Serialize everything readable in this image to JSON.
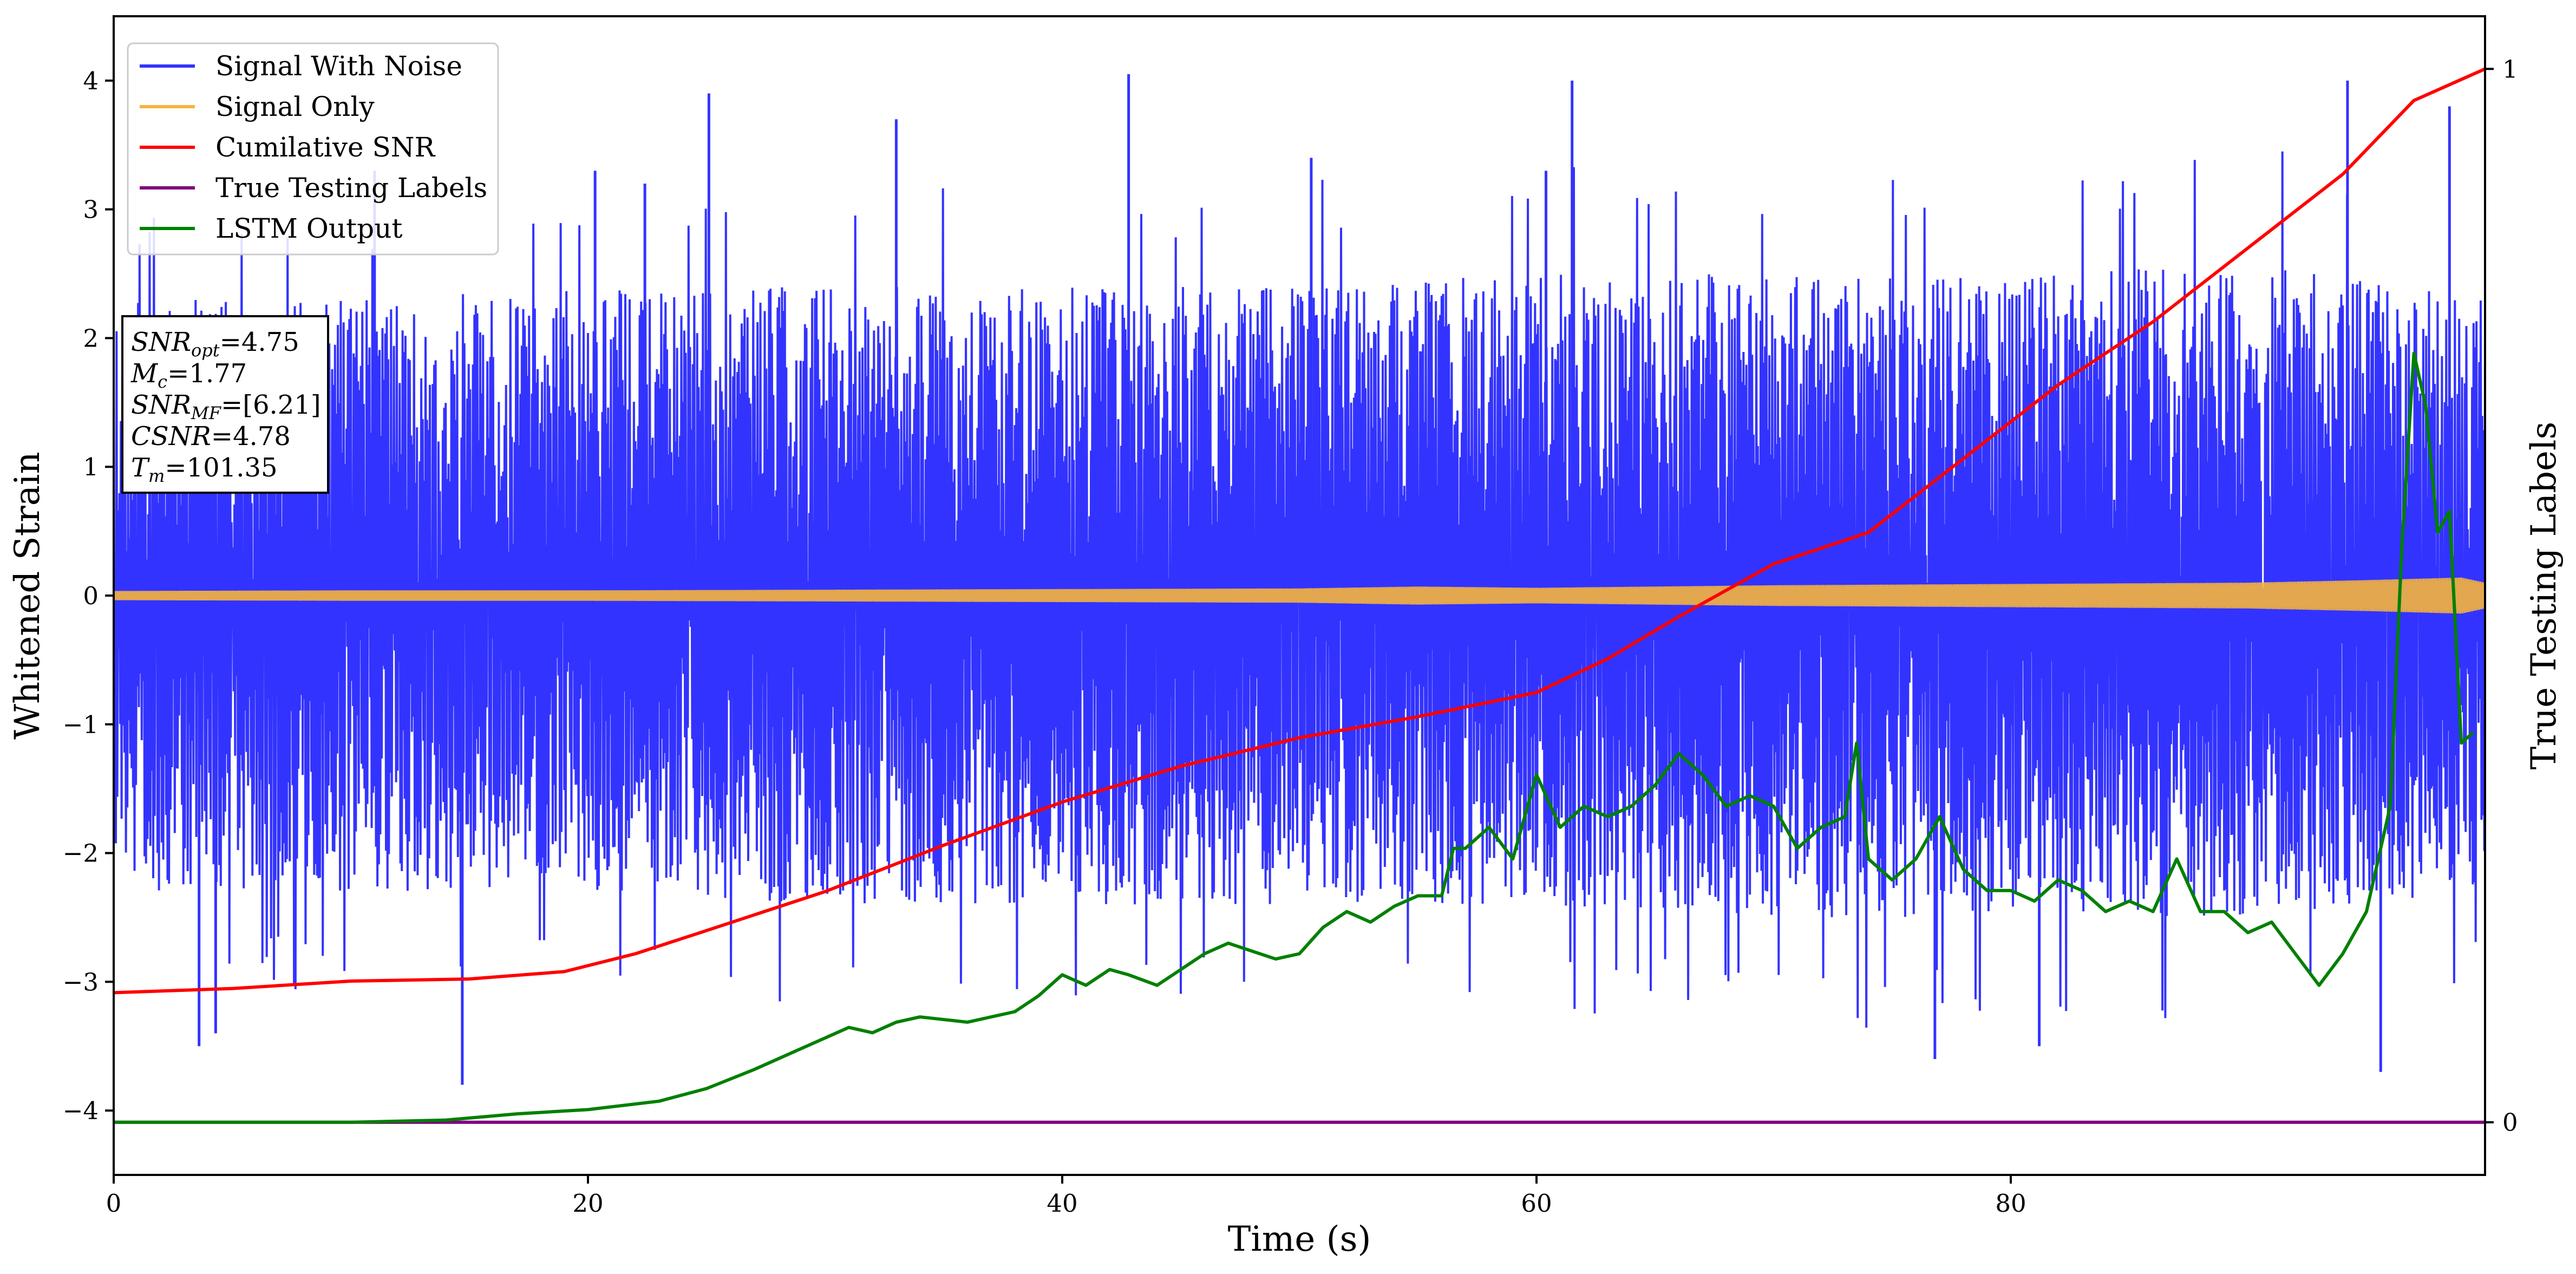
{
  "chart_data": {
    "type": "line",
    "xlabel": "Time (s)",
    "ylabel": "Whitened Strain",
    "y2label": "True Testing Labels",
    "xlim": [
      0,
      100
    ],
    "ylim": [
      -4.5,
      4.5
    ],
    "y2lim": [
      -0.05,
      1.05
    ],
    "xticks": [
      0,
      20,
      40,
      60,
      80
    ],
    "xtick_labels": [
      "0",
      "20",
      "40",
      "60",
      "80"
    ],
    "yticks": [
      -4,
      -3,
      -2,
      -1,
      0,
      1,
      2,
      3,
      4
    ],
    "ytick_labels": [
      "−4",
      "−3",
      "−2",
      "−1",
      "0",
      "1",
      "2",
      "3",
      "4"
    ],
    "y2ticks": [
      0,
      1
    ],
    "y2tick_labels": [
      "0",
      "1"
    ],
    "grid": false,
    "legend_position": "top-left",
    "legend": [
      {
        "label": "Signal With Noise",
        "color": "#3333ff"
      },
      {
        "label": "Signal Only",
        "color": "#f5b43c"
      },
      {
        "label": "Cumilative SNR",
        "color": "#ff0000"
      },
      {
        "label": "True Testing Labels",
        "color": "#800080"
      },
      {
        "label": "LSTM Output",
        "color": "#008000"
      }
    ],
    "annotation": [
      {
        "main": "SNR",
        "sub": "opt",
        "value": "=4.75"
      },
      {
        "main": "M",
        "sub": "c",
        "value": "=1.77"
      },
      {
        "main": "SNR",
        "sub": "MF",
        "value": "=[6.21]"
      },
      {
        "main": "CSNR",
        "sub": "",
        "value": "=4.78"
      },
      {
        "main": "T",
        "sub": "m",
        "value": "=101.35"
      }
    ],
    "series": [
      {
        "name": "Signal With Noise",
        "axis": "left",
        "color": "#3333ff",
        "kind": "dense-noise",
        "envelope_x": [
          0,
          10,
          20,
          30,
          40,
          50,
          60,
          70,
          80,
          90,
          100
        ],
        "envelope_upper": [
          2.3,
          2.3,
          2.4,
          2.4,
          2.4,
          2.4,
          2.5,
          2.5,
          2.5,
          2.6,
          2.3
        ],
        "envelope_lower": [
          -2.3,
          -2.3,
          -2.3,
          -2.4,
          -2.4,
          -2.4,
          -2.4,
          -2.5,
          -2.5,
          -2.5,
          -2.3
        ],
        "peak_x": [
          3.6,
          4.3,
          11,
          14.7,
          20.3,
          22.4,
          25.1,
          33.0,
          42.8,
          50.5,
          60.4,
          61.5,
          76.8,
          81.2,
          94.2,
          95.6,
          98.5
        ],
        "peak_y": [
          -3.5,
          -3.4,
          3.3,
          -3.8,
          3.3,
          3.2,
          3.9,
          3.7,
          4.05,
          3.4,
          3.3,
          4.0,
          -3.6,
          -3.5,
          4.0,
          -3.7,
          3.8
        ]
      },
      {
        "name": "Signal Only",
        "axis": "left",
        "color": "#f5b43c",
        "kind": "chirp-band",
        "x": [
          0,
          10,
          20,
          30,
          40,
          50,
          55,
          60,
          70,
          80,
          90,
          95,
          99,
          100
        ],
        "amplitude": [
          0.035,
          0.04,
          0.04,
          0.045,
          0.05,
          0.055,
          0.07,
          0.06,
          0.08,
          0.09,
          0.1,
          0.12,
          0.14,
          0.1
        ]
      },
      {
        "name": "Cumilative SNR",
        "axis": "right",
        "color": "#ff0000",
        "x": [
          0,
          5,
          10,
          15,
          19,
          22,
          25,
          30,
          35,
          40,
          45,
          50,
          55,
          60,
          63,
          66,
          70,
          74,
          78,
          82,
          86,
          90,
          94,
          97,
          100
        ],
        "y": [
          0.123,
          0.127,
          0.134,
          0.136,
          0.143,
          0.16,
          0.182,
          0.219,
          0.263,
          0.304,
          0.338,
          0.365,
          0.385,
          0.408,
          0.44,
          0.48,
          0.53,
          0.56,
          0.63,
          0.7,
          0.76,
          0.83,
          0.9,
          0.97,
          1.0
        ]
      },
      {
        "name": "True Testing Labels",
        "axis": "right",
        "color": "#800080",
        "x": [
          0,
          100
        ],
        "y": [
          0,
          0
        ]
      },
      {
        "name": "LSTM Output",
        "axis": "right",
        "color": "#008000",
        "x": [
          0,
          10,
          14,
          17,
          20,
          23,
          25,
          27,
          29,
          31,
          32,
          33,
          34,
          36,
          38,
          39,
          40,
          41,
          42,
          42.8,
          44,
          46,
          47,
          49,
          50,
          51,
          52,
          53,
          54,
          55,
          56,
          56.5,
          57,
          58,
          59,
          60,
          61,
          62,
          63,
          64,
          65,
          66,
          67,
          68,
          69,
          70,
          71,
          72,
          73,
          73.5,
          74,
          75,
          76,
          77,
          78,
          79,
          80,
          81,
          82,
          83,
          84,
          85,
          86,
          87,
          88,
          89,
          90,
          91,
          92,
          93,
          94,
          95,
          96,
          96.5,
          97,
          97.5,
          98,
          98.5,
          99,
          99.5
        ],
        "y": [
          0,
          0,
          0.002,
          0.008,
          0.012,
          0.02,
          0.032,
          0.05,
          0.07,
          0.09,
          0.085,
          0.095,
          0.1,
          0.095,
          0.105,
          0.12,
          0.14,
          0.13,
          0.145,
          0.14,
          0.13,
          0.16,
          0.17,
          0.155,
          0.16,
          0.185,
          0.2,
          0.19,
          0.205,
          0.215,
          0.215,
          0.26,
          0.26,
          0.28,
          0.25,
          0.33,
          0.28,
          0.3,
          0.29,
          0.3,
          0.32,
          0.35,
          0.33,
          0.3,
          0.31,
          0.3,
          0.26,
          0.28,
          0.29,
          0.36,
          0.25,
          0.23,
          0.25,
          0.29,
          0.24,
          0.22,
          0.22,
          0.21,
          0.23,
          0.22,
          0.2,
          0.21,
          0.2,
          0.25,
          0.2,
          0.2,
          0.18,
          0.19,
          0.16,
          0.13,
          0.16,
          0.2,
          0.3,
          0.55,
          0.73,
          0.68,
          0.56,
          0.58,
          0.36,
          0.37
        ]
      }
    ]
  }
}
